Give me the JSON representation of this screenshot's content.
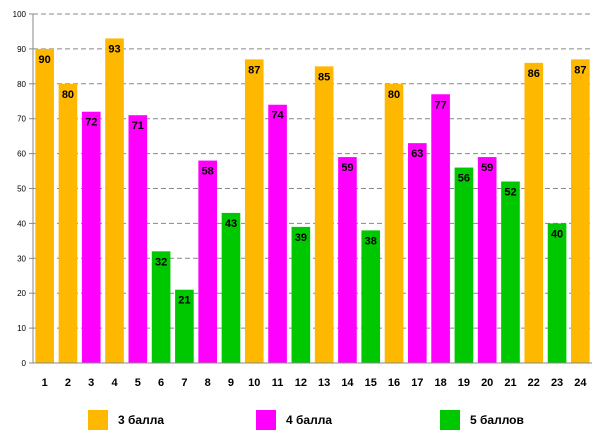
{
  "chart_data": {
    "type": "bar",
    "title": "",
    "xlabel": "",
    "ylabel": "",
    "ylim": [
      0,
      100
    ],
    "ytick_step": 10,
    "grid": true,
    "categories": [
      "1",
      "2",
      "3",
      "4",
      "5",
      "6",
      "7",
      "8",
      "9",
      "10",
      "11",
      "12",
      "13",
      "14",
      "15",
      "16",
      "17",
      "18",
      "19",
      "20",
      "21",
      "22",
      "23",
      "24"
    ],
    "values": [
      90,
      80,
      72,
      93,
      71,
      32,
      21,
      58,
      43,
      87,
      74,
      39,
      85,
      59,
      38,
      80,
      63,
      77,
      56,
      59,
      52,
      86,
      40,
      87
    ],
    "groups": [
      "3",
      "3",
      "4",
      "3",
      "4",
      "5",
      "5",
      "4",
      "5",
      "3",
      "4",
      "5",
      "3",
      "4",
      "5",
      "3",
      "4",
      "4",
      "5",
      "4",
      "5",
      "3",
      "5",
      "3"
    ],
    "legend": [
      {
        "key": "3",
        "label": "3 балла",
        "color": "#ffb800"
      },
      {
        "key": "4",
        "label": "4 балла",
        "color": "#ff00ff"
      },
      {
        "key": "5",
        "label": "5 баллов",
        "color": "#00c800"
      }
    ],
    "legend_position": "bottom"
  }
}
